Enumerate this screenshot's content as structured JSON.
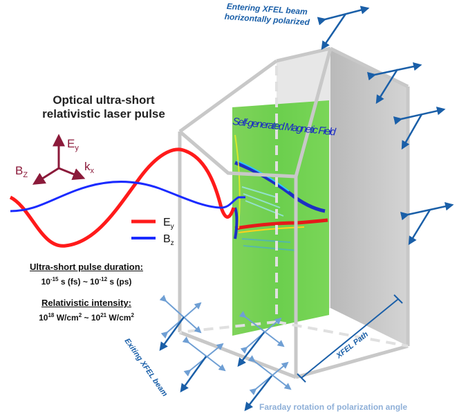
{
  "title_lines": [
    "Optical ultra-short",
    "relativistic laser pulse"
  ],
  "axes": {
    "ey": "E",
    "ey_sub": "y",
    "bz": "B",
    "bz_sub": "Z",
    "kx": "k",
    "kx_sub": "x"
  },
  "legend": [
    {
      "label": "E",
      "sub": "y",
      "color": "#ff1a1a"
    },
    {
      "label": "B",
      "sub": "z",
      "color": "#1a2bff"
    }
  ],
  "pulse_duration": {
    "heading": "Ultra-short pulse duration:",
    "value_html": "10<sup>-15</sup> s (fs) ~ 10<sup>-12</sup> s (ps)"
  },
  "intensity": {
    "heading": "Relativistic intensity:",
    "value_html": "10<sup>18</sup> W/cm<sup>2</sup> ~ 10<sup>21</sup> W/cm<sup>2</sup>"
  },
  "entering_beam": [
    "Entering XFEL beam",
    "horizontally polarized"
  ],
  "magnetic_field": "Self-generated Magnetic Field",
  "exiting_beam": "Exiting XFEL beam",
  "xfel_path": "XFEL Path",
  "faraday": "Faraday rotation of polarization angle",
  "colors": {
    "blue_label": "#1a5fa8",
    "faraday": "#8fb0d8",
    "axis": "#8b1a3a",
    "box": "#c8c8c8"
  }
}
